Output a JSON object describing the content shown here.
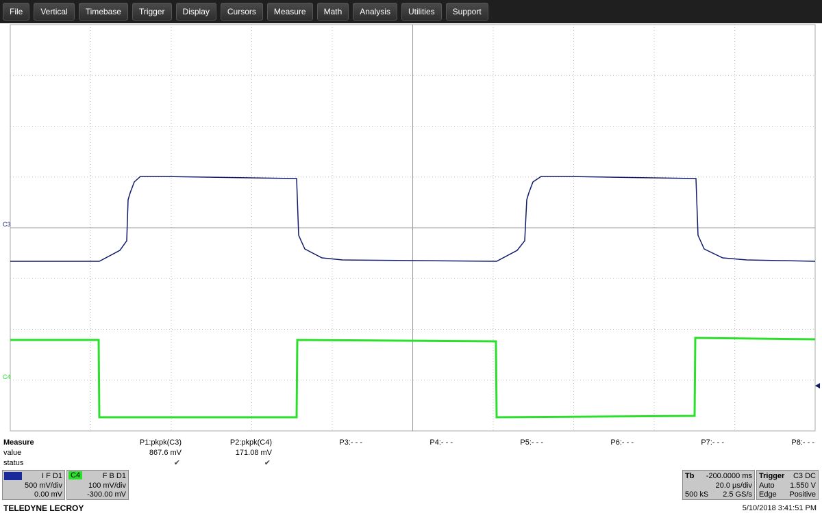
{
  "menu": [
    "File",
    "Vertical",
    "Timebase",
    "Trigger",
    "Display",
    "Cursors",
    "Measure",
    "Math",
    "Analysis",
    "Utilities",
    "Support"
  ],
  "traces": {
    "c3": "C3",
    "c4": "C4"
  },
  "measure": {
    "header": "Measure",
    "rows": [
      "value",
      "status"
    ],
    "params": [
      {
        "name": "P1:pkpk(C3)",
        "value": "867.6 mV",
        "status": "✔"
      },
      {
        "name": "P2:pkpk(C4)",
        "value": "171.08 mV",
        "status": "✔"
      },
      {
        "name": "P3:- - -"
      },
      {
        "name": "P4:- - -"
      },
      {
        "name": "P5:- - -"
      },
      {
        "name": "P6:- - -"
      },
      {
        "name": "P7:- - -"
      },
      {
        "name": "P8:- - -"
      }
    ]
  },
  "channels": [
    {
      "flags": "I F D1",
      "scale": "500 mV/div",
      "offset": "0.00 mV"
    },
    {
      "label": "C4",
      "flags": "F B D1",
      "scale": "100 mV/div",
      "offset": "-300.00 mV"
    }
  ],
  "timebase": {
    "label": "Tb",
    "delay": "-200.0000 ms",
    "scale": "20.0 µs/div",
    "samples": "500 kS",
    "rate": "2.5 GS/s"
  },
  "trigger": {
    "label": "Trigger",
    "source": "C3 DC",
    "mode": "Auto",
    "level": "1.550 V",
    "type": "Edge",
    "slope": "Positive"
  },
  "footer": {
    "brand": "TELEDYNE LECROY",
    "datetime": "5/10/2018 3:41:51 PM"
  }
}
